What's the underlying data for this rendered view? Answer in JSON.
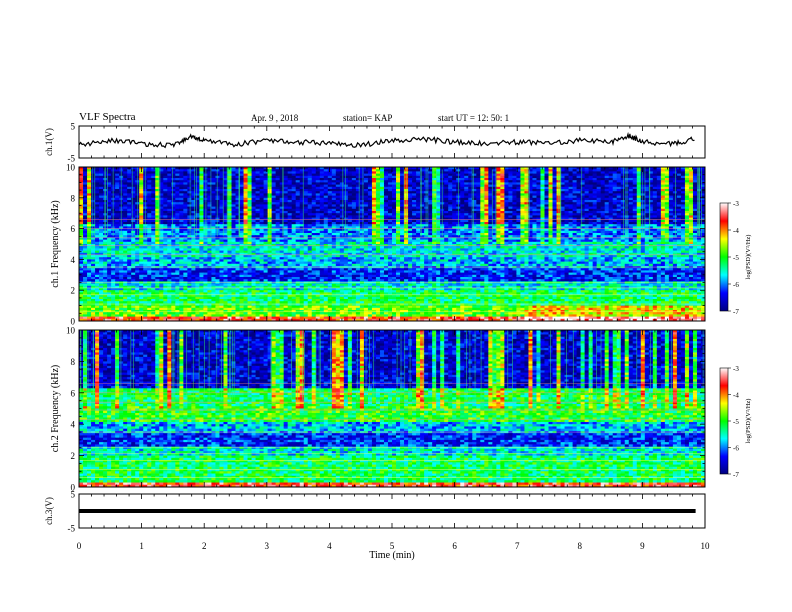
{
  "header": {
    "title": "VLF Spectra",
    "date": "Apr. 9 , 2018",
    "station": "station= KAP",
    "start": "start UT = 12: 50: 1"
  },
  "colorbar": {
    "label": "log(PSD)(V²/Hz)",
    "ticks": [
      "-3",
      "-4",
      "-5",
      "-6",
      "-7"
    ],
    "stops": [
      "#000080",
      "#0000ff",
      "#00ffff",
      "#00ff00",
      "#ffff00",
      "#ff0000",
      "#ffffff"
    ]
  },
  "chart_data": [
    {
      "type": "line",
      "panel": "ch1-waveform",
      "ylabel": "ch.1(V)",
      "ylim": [
        -5,
        5
      ],
      "yticks": [
        "5",
        "-5"
      ],
      "xlim": [
        0,
        10
      ],
      "note_series": "noisy waveform oscillating roughly between -2 and 2 V over 0–9.85 min",
      "x": [
        0,
        0.5,
        1,
        1.5,
        1.8,
        2,
        2.5,
        3,
        3.5,
        4,
        4.5,
        5,
        5.5,
        6,
        6.5,
        7,
        7.5,
        8,
        8.5,
        8.8,
        9,
        9.5,
        9.85
      ],
      "y": [
        -1,
        0.5,
        -0.5,
        -1.2,
        1.8,
        0.5,
        -0.8,
        0.5,
        0,
        -0.5,
        -1,
        0.5,
        1,
        0,
        -0.5,
        0,
        -0.5,
        0.5,
        0,
        2,
        0,
        -0.5,
        1
      ]
    },
    {
      "type": "heatmap",
      "panel": "ch1-spectrogram",
      "ylabel": "ch.1 Frequency (kHz)",
      "ylim": [
        0,
        10
      ],
      "yticks": [
        "0",
        "2",
        "4",
        "6",
        "8",
        "10"
      ],
      "xlim": [
        0,
        10
      ],
      "zlabel": "log(PSD)(V²/Hz)",
      "zlim": [
        -7,
        -3
      ]
    },
    {
      "type": "heatmap",
      "panel": "ch2-spectrogram",
      "ylabel": "ch.2 Frequency (kHz)",
      "ylim": [
        0,
        10
      ],
      "yticks": [
        "0",
        "2",
        "4",
        "6",
        "8",
        "10"
      ],
      "xlim": [
        0,
        10
      ],
      "zlabel": "log(PSD)(V²/Hz)",
      "zlim": [
        -7,
        -3
      ]
    },
    {
      "type": "line",
      "panel": "ch3-waveform",
      "ylabel": "ch.3(V)",
      "ylim": [
        -5,
        5
      ],
      "yticks": [
        "5",
        "-5"
      ],
      "xlim": [
        0,
        10
      ],
      "x": [
        0,
        9.85
      ],
      "y": [
        0,
        0
      ],
      "xlabel": "Time (min)",
      "xticks": [
        "0",
        "1",
        "2",
        "3",
        "4",
        "5",
        "6",
        "7",
        "8",
        "9",
        "10"
      ]
    }
  ]
}
